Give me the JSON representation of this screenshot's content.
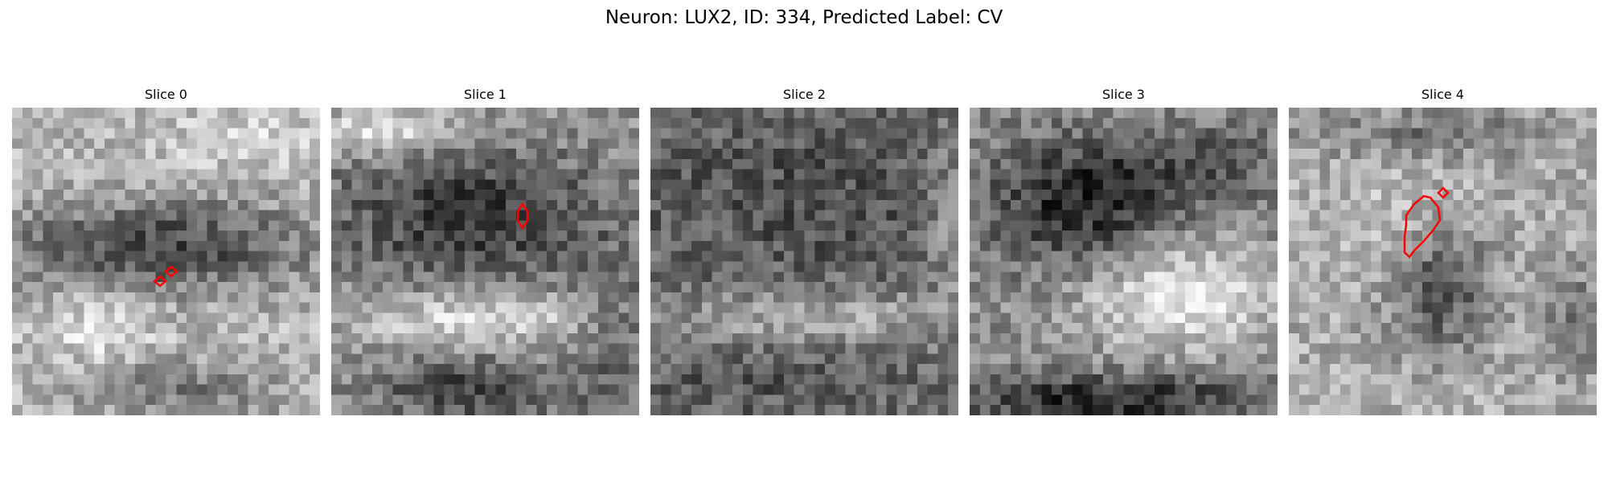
{
  "figure": {
    "title": "Neuron: LUX2, ID: 334, Predicted Label: CV",
    "contour_color": "#ff0000"
  },
  "slices": [
    {
      "title": "Slice 0"
    },
    {
      "title": "Slice 1"
    },
    {
      "title": "Slice 2"
    },
    {
      "title": "Slice 3"
    },
    {
      "title": "Slice 4"
    }
  ]
}
